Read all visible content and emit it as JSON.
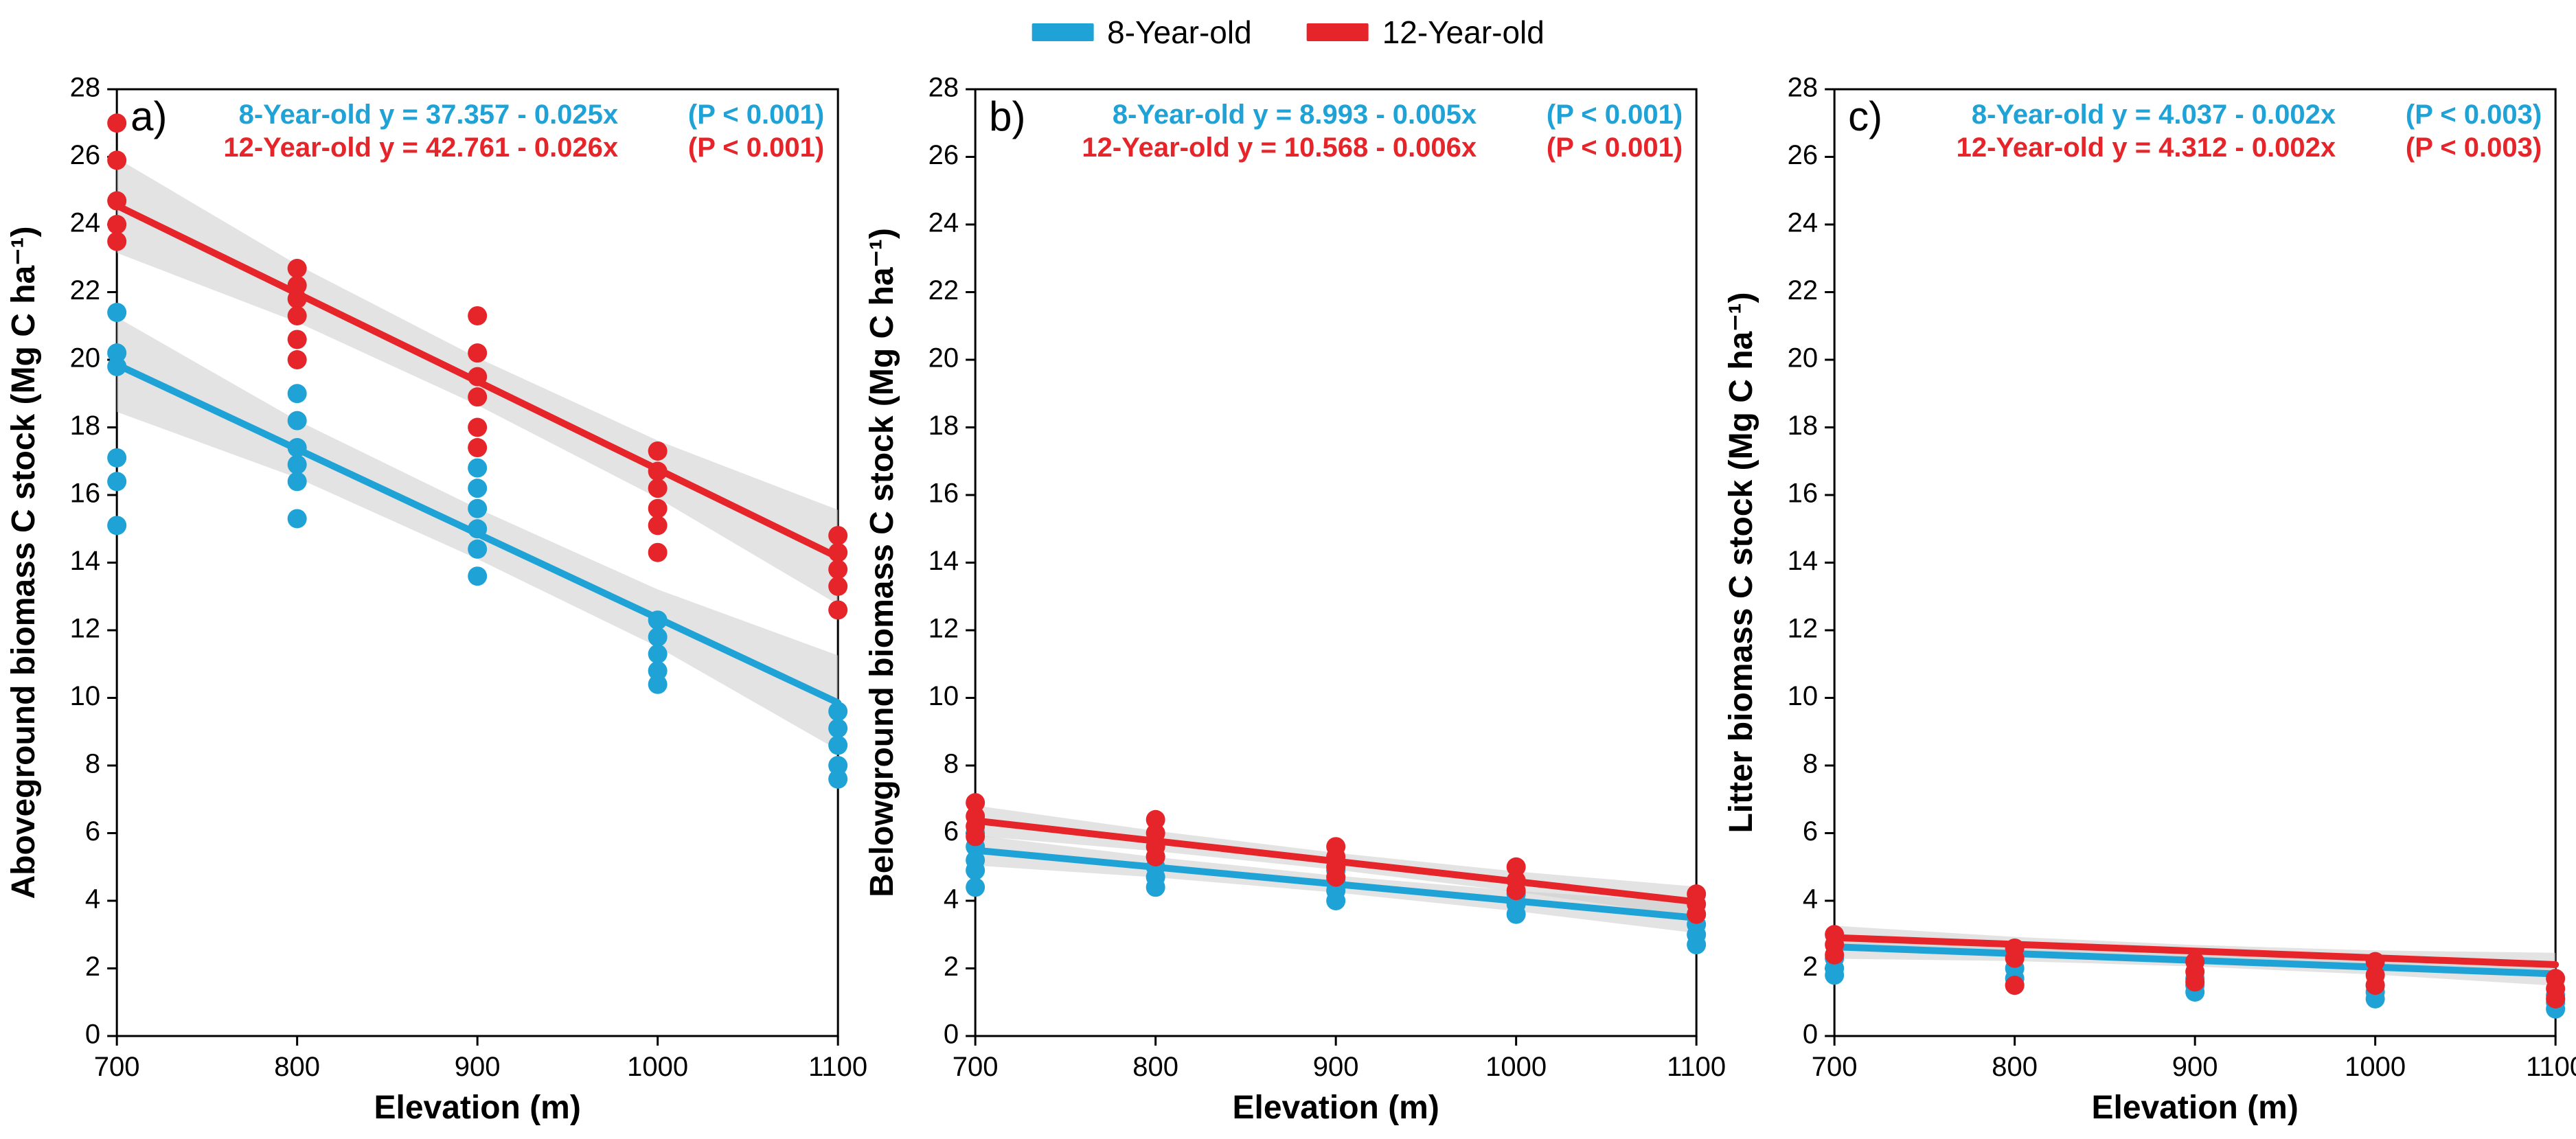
{
  "legend": {
    "items": [
      {
        "label": "8-Year-old",
        "color": "#1fa2d6"
      },
      {
        "label": "12-Year-old",
        "color": "#e5252a"
      }
    ]
  },
  "global": {
    "background_color": "#ffffff",
    "axis_color": "#000000",
    "tick_color": "#000000",
    "axis_line_width": 3,
    "tick_length": 14,
    "ribbon_color": "#cccccc",
    "ribbon_opacity": 0.55,
    "point_radius": 14,
    "line_width": 10,
    "axis_title_fontsize": 48,
    "tick_fontsize": 40,
    "eqn_fontsize": 40,
    "panel_label_fontsize": 60,
    "xlim": [
      700,
      1100
    ],
    "ylim": [
      0,
      28
    ],
    "xticks": [
      700,
      800,
      900,
      1000,
      1100
    ],
    "yticks": [
      0,
      2,
      4,
      6,
      8,
      10,
      12,
      14,
      16,
      18,
      20,
      22,
      24,
      26,
      28
    ],
    "xlabel": "Elevation (m)"
  },
  "panels": [
    {
      "id": "a",
      "panel_label": "a)",
      "ylabel": "Aboveground biomass C stock (Mg C ha⁻¹)",
      "equations": [
        {
          "series": "8-Year-old",
          "text": "8-Year-old y =  37.357 - 0.025x",
          "pval": "(P < 0.001)",
          "color": "#1fa2d6"
        },
        {
          "series": "12-Year-old",
          "text": "12-Year-old y = 42.761 - 0.026x",
          "pval": "(P < 0.001)",
          "color": "#e5252a"
        }
      ],
      "series": [
        {
          "name": "8-Year-old",
          "color": "#1fa2d6",
          "slope": -0.025,
          "intercept": 37.357,
          "ribbon_halfwidth": [
            1.4,
            0.85,
            0.75,
            0.85,
            1.4
          ],
          "points": [
            {
              "x": 700,
              "y": 21.4
            },
            {
              "x": 700,
              "y": 20.2
            },
            {
              "x": 700,
              "y": 19.8
            },
            {
              "x": 700,
              "y": 17.1
            },
            {
              "x": 700,
              "y": 16.4
            },
            {
              "x": 700,
              "y": 15.1
            },
            {
              "x": 800,
              "y": 19.0
            },
            {
              "x": 800,
              "y": 18.2
            },
            {
              "x": 800,
              "y": 17.4
            },
            {
              "x": 800,
              "y": 16.9
            },
            {
              "x": 800,
              "y": 16.4
            },
            {
              "x": 800,
              "y": 15.3
            },
            {
              "x": 900,
              "y": 16.8
            },
            {
              "x": 900,
              "y": 16.2
            },
            {
              "x": 900,
              "y": 15.6
            },
            {
              "x": 900,
              "y": 15.0
            },
            {
              "x": 900,
              "y": 14.4
            },
            {
              "x": 900,
              "y": 13.6
            },
            {
              "x": 1000,
              "y": 12.3
            },
            {
              "x": 1000,
              "y": 11.8
            },
            {
              "x": 1000,
              "y": 11.3
            },
            {
              "x": 1000,
              "y": 10.8
            },
            {
              "x": 1000,
              "y": 10.4
            },
            {
              "x": 1100,
              "y": 9.6
            },
            {
              "x": 1100,
              "y": 9.1
            },
            {
              "x": 1100,
              "y": 8.6
            },
            {
              "x": 1100,
              "y": 8.0
            },
            {
              "x": 1100,
              "y": 7.6
            }
          ]
        },
        {
          "name": "12-Year-old",
          "color": "#e5252a",
          "slope": -0.026,
          "intercept": 42.761,
          "ribbon_halfwidth": [
            1.4,
            0.85,
            0.7,
            0.85,
            1.4
          ],
          "points": [
            {
              "x": 700,
              "y": 27.0
            },
            {
              "x": 700,
              "y": 25.9
            },
            {
              "x": 700,
              "y": 24.7
            },
            {
              "x": 700,
              "y": 24.0
            },
            {
              "x": 700,
              "y": 23.5
            },
            {
              "x": 800,
              "y": 22.7
            },
            {
              "x": 800,
              "y": 22.2
            },
            {
              "x": 800,
              "y": 21.8
            },
            {
              "x": 800,
              "y": 21.3
            },
            {
              "x": 800,
              "y": 20.6
            },
            {
              "x": 800,
              "y": 20.0
            },
            {
              "x": 900,
              "y": 21.3
            },
            {
              "x": 900,
              "y": 20.2
            },
            {
              "x": 900,
              "y": 19.5
            },
            {
              "x": 900,
              "y": 18.9
            },
            {
              "x": 900,
              "y": 18.0
            },
            {
              "x": 900,
              "y": 17.4
            },
            {
              "x": 1000,
              "y": 17.3
            },
            {
              "x": 1000,
              "y": 16.7
            },
            {
              "x": 1000,
              "y": 16.2
            },
            {
              "x": 1000,
              "y": 15.6
            },
            {
              "x": 1000,
              "y": 15.1
            },
            {
              "x": 1000,
              "y": 14.3
            },
            {
              "x": 1100,
              "y": 14.8
            },
            {
              "x": 1100,
              "y": 14.3
            },
            {
              "x": 1100,
              "y": 13.8
            },
            {
              "x": 1100,
              "y": 13.3
            },
            {
              "x": 1100,
              "y": 12.6
            }
          ]
        }
      ]
    },
    {
      "id": "b",
      "panel_label": "b)",
      "ylabel": "Belowground biomass C stock (Mg C ha⁻¹)",
      "equations": [
        {
          "series": "8-Year-old",
          "text": "8-Year-old  y =  8.993 - 0.005x",
          "pval": "(P < 0.001)",
          "color": "#1fa2d6"
        },
        {
          "series": "12-Year-old",
          "text": "12-Year-old y = 10.568 - 0.006x",
          "pval": "(P < 0.001)",
          "color": "#e5252a"
        }
      ],
      "series": [
        {
          "name": "8-Year-old",
          "color": "#1fa2d6",
          "slope": -0.005,
          "intercept": 8.993,
          "ribbon_halfwidth": [
            0.45,
            0.3,
            0.25,
            0.3,
            0.45
          ],
          "points": [
            {
              "x": 700,
              "y": 6.0
            },
            {
              "x": 700,
              "y": 5.6
            },
            {
              "x": 700,
              "y": 5.2
            },
            {
              "x": 700,
              "y": 4.9
            },
            {
              "x": 700,
              "y": 4.4
            },
            {
              "x": 800,
              "y": 5.3
            },
            {
              "x": 800,
              "y": 5.0
            },
            {
              "x": 800,
              "y": 4.7
            },
            {
              "x": 800,
              "y": 4.4
            },
            {
              "x": 900,
              "y": 4.9
            },
            {
              "x": 900,
              "y": 4.6
            },
            {
              "x": 900,
              "y": 4.3
            },
            {
              "x": 900,
              "y": 4.0
            },
            {
              "x": 1000,
              "y": 4.2
            },
            {
              "x": 1000,
              "y": 3.9
            },
            {
              "x": 1000,
              "y": 3.6
            },
            {
              "x": 1100,
              "y": 3.6
            },
            {
              "x": 1100,
              "y": 3.3
            },
            {
              "x": 1100,
              "y": 3.0
            },
            {
              "x": 1100,
              "y": 2.7
            }
          ]
        },
        {
          "name": "12-Year-old",
          "color": "#e5252a",
          "slope": -0.006,
          "intercept": 10.568,
          "ribbon_halfwidth": [
            0.45,
            0.3,
            0.25,
            0.3,
            0.45
          ],
          "points": [
            {
              "x": 700,
              "y": 6.9
            },
            {
              "x": 700,
              "y": 6.5
            },
            {
              "x": 700,
              "y": 6.2
            },
            {
              "x": 700,
              "y": 5.9
            },
            {
              "x": 800,
              "y": 6.4
            },
            {
              "x": 800,
              "y": 6.0
            },
            {
              "x": 800,
              "y": 5.6
            },
            {
              "x": 800,
              "y": 5.3
            },
            {
              "x": 900,
              "y": 5.6
            },
            {
              "x": 900,
              "y": 5.3
            },
            {
              "x": 900,
              "y": 5.0
            },
            {
              "x": 900,
              "y": 4.7
            },
            {
              "x": 1000,
              "y": 5.0
            },
            {
              "x": 1000,
              "y": 4.6
            },
            {
              "x": 1000,
              "y": 4.3
            },
            {
              "x": 1100,
              "y": 4.2
            },
            {
              "x": 1100,
              "y": 3.9
            },
            {
              "x": 1100,
              "y": 3.6
            }
          ]
        }
      ]
    },
    {
      "id": "c",
      "panel_label": "c)",
      "ylabel": "Litter biomass C stock (Mg C ha⁻¹)",
      "equations": [
        {
          "series": "8-Year-old",
          "text": "8-Year-old  y = 4.037 - 0.002x",
          "pval": "(P < 0.003)",
          "color": "#1fa2d6"
        },
        {
          "series": "12-Year-old",
          "text": "12-Year-old y = 4.312 - 0.002x",
          "pval": "(P < 0.003)",
          "color": "#e5252a"
        }
      ],
      "series": [
        {
          "name": "8-Year-old",
          "color": "#1fa2d6",
          "slope": -0.002,
          "intercept": 4.037,
          "ribbon_halfwidth": [
            0.35,
            0.22,
            0.18,
            0.22,
            0.35
          ],
          "points": [
            {
              "x": 700,
              "y": 2.3
            },
            {
              "x": 700,
              "y": 2.0
            },
            {
              "x": 700,
              "y": 1.8
            },
            {
              "x": 800,
              "y": 2.0
            },
            {
              "x": 800,
              "y": 1.7
            },
            {
              "x": 800,
              "y": 1.5
            },
            {
              "x": 900,
              "y": 1.7
            },
            {
              "x": 900,
              "y": 1.5
            },
            {
              "x": 900,
              "y": 1.3
            },
            {
              "x": 1000,
              "y": 1.5
            },
            {
              "x": 1000,
              "y": 1.3
            },
            {
              "x": 1000,
              "y": 1.1
            },
            {
              "x": 1100,
              "y": 1.2
            },
            {
              "x": 1100,
              "y": 1.0
            },
            {
              "x": 1100,
              "y": 0.8
            }
          ]
        },
        {
          "name": "12-Year-old",
          "color": "#e5252a",
          "slope": -0.002,
          "intercept": 4.312,
          "ribbon_halfwidth": [
            0.35,
            0.22,
            0.18,
            0.22,
            0.35
          ],
          "points": [
            {
              "x": 700,
              "y": 3.0
            },
            {
              "x": 700,
              "y": 2.7
            },
            {
              "x": 700,
              "y": 2.4
            },
            {
              "x": 800,
              "y": 2.6
            },
            {
              "x": 800,
              "y": 2.3
            },
            {
              "x": 800,
              "y": 1.5
            },
            {
              "x": 900,
              "y": 2.2
            },
            {
              "x": 900,
              "y": 1.9
            },
            {
              "x": 900,
              "y": 1.6
            },
            {
              "x": 1000,
              "y": 2.2
            },
            {
              "x": 1000,
              "y": 1.8
            },
            {
              "x": 1000,
              "y": 1.5
            },
            {
              "x": 1100,
              "y": 1.7
            },
            {
              "x": 1100,
              "y": 1.4
            },
            {
              "x": 1100,
              "y": 1.1
            }
          ]
        }
      ]
    }
  ]
}
